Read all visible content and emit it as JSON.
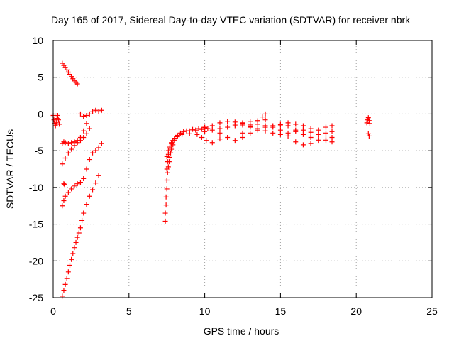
{
  "chart_data": {
    "type": "scatter",
    "title": "Day 165 of 2017, Sidereal Day-to-day VTEC variation (SDTVAR) for receiver nbrk",
    "xlabel": "GPS time / hours",
    "ylabel": "SDTVAR / TECUs",
    "xlim": [
      0,
      25
    ],
    "ylim": [
      -25,
      10
    ],
    "x_ticks": [
      "0",
      "5",
      "10",
      "15",
      "20",
      "25"
    ],
    "y_ticks": [
      "10",
      "5",
      "0",
      "-5",
      "-10",
      "-15",
      "-20",
      "-25"
    ],
    "grid": true,
    "legend": "none",
    "marker": "plus",
    "color": "#ff0000",
    "series": [
      {
        "x": [
          0.6,
          0.7,
          0.8,
          0.9,
          1.0,
          1.1,
          1.2,
          1.3,
          1.4,
          1.5,
          1.6,
          0.0,
          0.05,
          0.1,
          0.15,
          0.2,
          0.25,
          0.3,
          0.35,
          0.4,
          0.6,
          0.7,
          0.8,
          1.0,
          1.2,
          1.4,
          1.6,
          1.8,
          2.0,
          2.2,
          0.6,
          0.8,
          1.0,
          1.2,
          1.4,
          1.6,
          1.8,
          2.0,
          2.2,
          2.4,
          0.6,
          0.7,
          0.8,
          1.0,
          1.2,
          1.4,
          1.6,
          1.8,
          2.0,
          2.2,
          2.4,
          2.6,
          2.8,
          3.0,
          3.2,
          0.6,
          0.7,
          0.8,
          0.9,
          1.0,
          1.1,
          1.2,
          1.3,
          1.4,
          1.5,
          1.6,
          1.7,
          1.8,
          1.9,
          2.0,
          2.2,
          2.4,
          2.6,
          2.8,
          3.0,
          1.8,
          2.0,
          2.2,
          2.4,
          2.6,
          2.8,
          3.0,
          3.2,
          0.7,
          0.75
        ],
        "y": [
          6.9,
          6.6,
          6.3,
          6.0,
          5.7,
          5.4,
          5.1,
          4.8,
          4.5,
          4.3,
          4.1,
          -0.2,
          -0.8,
          -1.3,
          -1.6,
          -1.2,
          -0.6,
          -0.2,
          -0.8,
          -1.4,
          -4.0,
          -3.8,
          -3.9,
          -4.0,
          -3.9,
          -3.8,
          -3.6,
          -3.2,
          -2.3,
          -1.3,
          -6.8,
          -6.0,
          -5.3,
          -4.8,
          -4.3,
          -3.9,
          -3.6,
          -3.2,
          -2.7,
          -2.0,
          -12.5,
          -11.8,
          -11.2,
          -10.7,
          -10.2,
          -9.8,
          -9.5,
          -9.3,
          -8.8,
          -7.5,
          -6.2,
          -5.3,
          -5.0,
          -4.6,
          -4.0,
          -24.8,
          -24.0,
          -23.2,
          -22.4,
          -21.5,
          -20.6,
          -19.8,
          -19.0,
          -18.2,
          -17.5,
          -16.8,
          -16.2,
          -15.5,
          -14.5,
          -13.5,
          -12.3,
          -11.2,
          -10.3,
          -9.4,
          -8.4,
          0.0,
          -0.3,
          -0.2,
          0.0,
          0.3,
          0.5,
          0.3,
          0.5,
          -9.5,
          -9.6
        ]
      },
      {
        "x": [
          7.4,
          7.4,
          7.45,
          7.45,
          7.5,
          7.5,
          7.55,
          7.6,
          7.65,
          7.7,
          7.75,
          7.8,
          7.9,
          8.0,
          8.2,
          8.5,
          8.8,
          9.2,
          9.6,
          10.0,
          7.5,
          7.55,
          7.6,
          7.7,
          7.8,
          7.9,
          8.0,
          8.2,
          8.4,
          8.6,
          9.0,
          9.4,
          9.8,
          10.2,
          7.5,
          7.6,
          7.7,
          7.8,
          8.0,
          8.2,
          8.5,
          9.0,
          9.5,
          9.8,
          10.1,
          10.5,
          11.0
        ],
        "y": [
          -14.6,
          -13.5,
          -12.4,
          -11.3,
          -10.2,
          -9.0,
          -8.0,
          -7.2,
          -6.5,
          -5.9,
          -5.3,
          -4.8,
          -4.2,
          -3.6,
          -3.0,
          -2.6,
          -2.3,
          -2.1,
          -2.0,
          -1.9,
          -7.5,
          -6.5,
          -5.5,
          -4.6,
          -4.0,
          -3.6,
          -3.3,
          -2.9,
          -2.6,
          -2.4,
          -2.3,
          -2.2,
          -2.1,
          -2.0,
          -5.8,
          -5.0,
          -4.4,
          -3.9,
          -3.4,
          -3.1,
          -2.8,
          -2.7,
          -2.8,
          -3.2,
          -3.6,
          -3.9,
          -3.4
        ]
      },
      {
        "x": [
          10.0,
          10.5,
          11.0,
          11.5,
          12.0,
          12.5,
          13.0,
          13.5,
          14.0,
          14.5,
          15.0,
          15.5,
          16.0,
          16.5,
          17.0,
          17.5,
          18.0,
          18.4,
          10.0,
          10.5,
          11.0,
          11.5,
          12.0,
          12.5,
          13.0,
          13.5,
          14.0,
          14.5,
          15.0,
          15.5,
          16.0,
          16.5,
          17.0,
          17.5,
          18.0,
          18.4,
          11.0,
          11.5,
          12.0,
          12.5,
          13.0,
          13.5,
          14.0,
          14.5,
          15.0,
          15.5,
          16.0,
          16.5,
          17.0,
          17.5,
          18.0,
          18.4,
          12.0,
          12.5,
          13.0,
          13.5,
          14.0,
          15.0,
          15.5,
          16.0,
          16.5,
          17.0,
          17.5,
          18.0,
          18.4,
          12.5,
          13.0,
          13.5,
          13.8,
          14.0
        ],
        "y": [
          -1.8,
          -1.6,
          -1.2,
          -1.0,
          -1.1,
          -1.3,
          -1.5,
          -1.4,
          -1.6,
          -1.8,
          -1.5,
          -1.2,
          -1.4,
          -1.6,
          -2.0,
          -2.2,
          -1.8,
          -1.6,
          -2.4,
          -2.2,
          -2.0,
          -1.8,
          -1.6,
          -1.5,
          -1.7,
          -2.0,
          -2.3,
          -2.6,
          -2.8,
          -2.6,
          -2.4,
          -2.2,
          -2.5,
          -2.8,
          -2.6,
          -2.4,
          -2.6,
          -3.2,
          -3.6,
          -3.2,
          -2.6,
          -2.2,
          -1.8,
          -1.6,
          -1.4,
          -1.6,
          -2.2,
          -2.8,
          -3.2,
          -3.4,
          -3.6,
          -3.8,
          -1.4,
          -1.2,
          -1.0,
          -0.9,
          -0.8,
          -2.2,
          -3.0,
          -3.8,
          -4.2,
          -4.0,
          -3.6,
          -3.4,
          -3.2,
          -2.6,
          -1.8,
          -1.0,
          -0.4,
          0.0
        ]
      },
      {
        "x": [
          20.7,
          20.75,
          20.8,
          20.85,
          20.9,
          20.8,
          20.85
        ],
        "y": [
          -1.2,
          -0.8,
          -0.5,
          -0.9,
          -1.3,
          -2.7,
          -3.0
        ]
      }
    ]
  }
}
